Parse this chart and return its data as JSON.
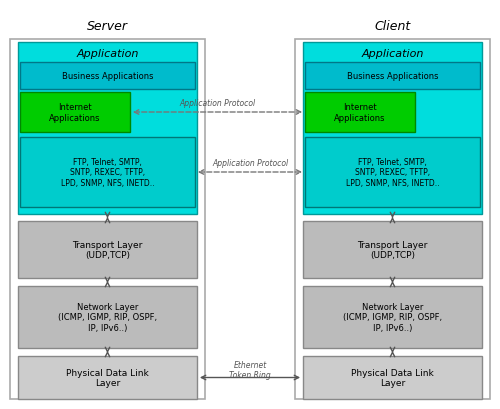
{
  "title_server": "Server",
  "title_client": "Client",
  "app_label": "Application",
  "business_label": "Business Applications",
  "internet_label": "Internet\nApplications",
  "protocols_label": "FTP, Telnet, SMTP,\nSNTP, REXEC, TFTP,\nLPD, SNMP, NFS, INETD..",
  "transport_label": "Transport Layer\n(UDP,TCP)",
  "network_label": "Network Layer\n(ICMP, IGMP, RIP, OSPF,\nIP, IPv6..)",
  "physical_label": "Physical Data Link\nLayer",
  "app_protocol_label1": "Application Protocol",
  "app_protocol_label2": "Application Protocol",
  "ethernet_label": "Ethernet\nToken Ring",
  "cyan_outer": "#00dddd",
  "cyan_outer_edge": "#009999",
  "cyan_business": "#00bbcc",
  "cyan_business_edge": "#007788",
  "green_internet": "#00cc00",
  "green_internet_edge": "#008800",
  "cyan_proto": "#00cccc",
  "cyan_proto_edge": "#007777",
  "gray_transport": "#bbbbbb",
  "gray_transport_edge": "#888888",
  "gray_network": "#bbbbbb",
  "gray_network_edge": "#888888",
  "gray_physical": "#cccccc",
  "gray_physical_edge": "#888888",
  "arrow_color": "#555555",
  "dashed_arrow_color": "#777777",
  "font_size_title": 9,
  "font_size_app": 8,
  "font_size_label": 6,
  "font_size_proto": 5.5,
  "font_size_transport": 6.5,
  "font_size_network": 6,
  "font_size_physical": 6.5
}
